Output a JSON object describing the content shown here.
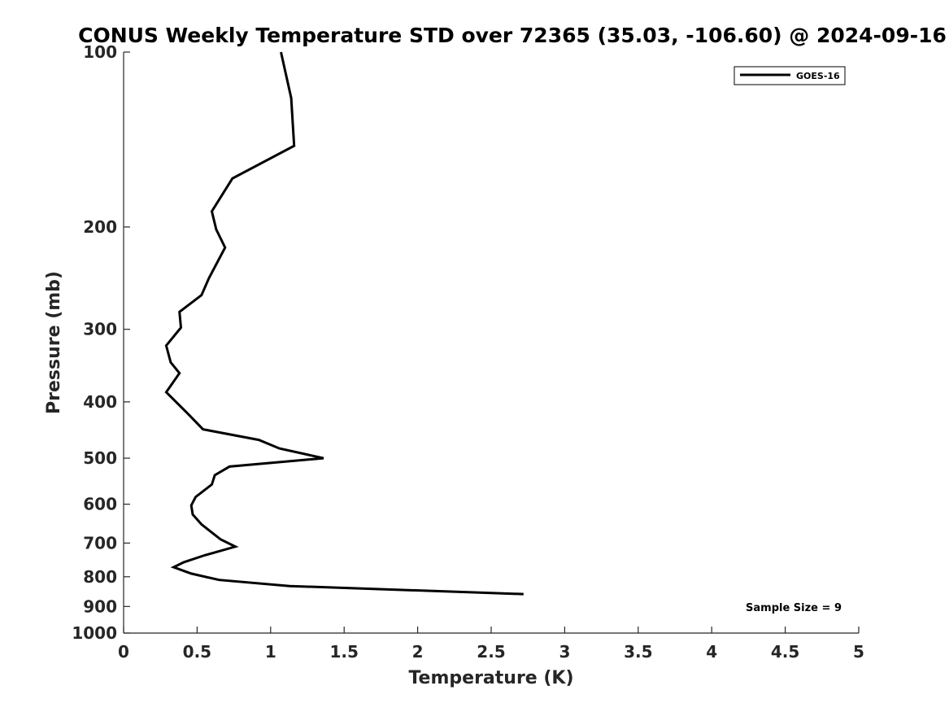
{
  "chart_data": {
    "type": "line",
    "title": "CONUS Weekly Temperature STD over 72365 (35.03, -106.60) @ 2024-09-16",
    "xlabel": "Temperature (K)",
    "ylabel": "Pressure (mb)",
    "xlim": [
      0,
      5
    ],
    "ylim": [
      100,
      1000
    ],
    "y_scale": "log",
    "y_reversed": true,
    "x_ticks": [
      "0",
      "0.5",
      "1",
      "1.5",
      "2",
      "2.5",
      "3",
      "3.5",
      "4",
      "4.5",
      "5"
    ],
    "y_ticks": [
      "100",
      "200",
      "300",
      "400",
      "500",
      "600",
      "700",
      "800",
      "900",
      "1000"
    ],
    "grid": false,
    "legend_position": "top-right",
    "annotation": "Sample Size = 9",
    "series": [
      {
        "name": "GOES-16",
        "color": "#000000",
        "x": [
          1.07,
          1.14,
          1.16,
          0.74,
          0.6,
          0.63,
          0.69,
          0.58,
          0.53,
          0.38,
          0.39,
          0.29,
          0.32,
          0.38,
          0.29,
          0.44,
          0.54,
          0.92,
          1.06,
          1.36,
          0.72,
          0.62,
          0.6,
          0.49,
          0.46,
          0.47,
          0.53,
          0.66,
          0.76,
          0.55,
          0.41,
          0.34,
          0.46,
          0.65,
          1.13,
          2.72
        ],
        "y": [
          100,
          120,
          145,
          165,
          188,
          202,
          217,
          245,
          262,
          280,
          298,
          320,
          342,
          357,
          385,
          420,
          446,
          465,
          481,
          500,
          517,
          535,
          555,
          583,
          603,
          625,
          650,
          690,
          710,
          735,
          755,
          770,
          790,
          810,
          830,
          857
        ]
      }
    ]
  }
}
